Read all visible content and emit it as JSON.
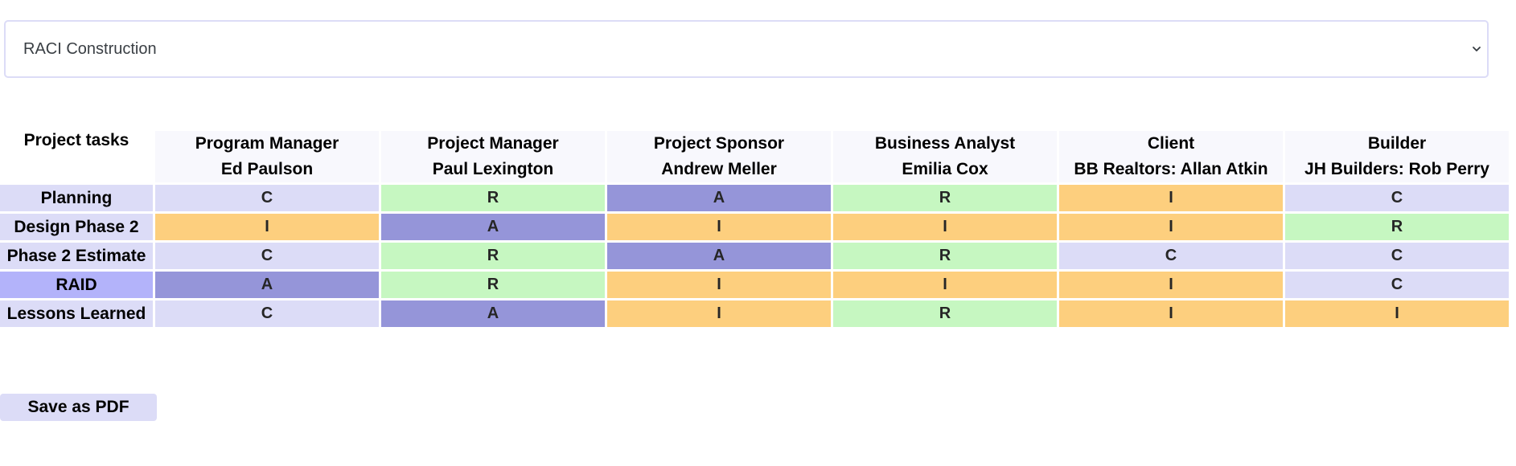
{
  "selector": {
    "value": "RACI Construction"
  },
  "table": {
    "task_header": "Project tasks",
    "roles": [
      {
        "title": "Program Manager",
        "person": "Ed Paulson"
      },
      {
        "title": "Project Manager",
        "person": "Paul Lexington"
      },
      {
        "title": "Project Sponsor",
        "person": "Andrew Meller"
      },
      {
        "title": "Business Analyst",
        "person": "Emilia Cox"
      },
      {
        "title": "Client",
        "person": "BB Realtors: Allan Atkin"
      },
      {
        "title": "Builder",
        "person": "JH Builders: Rob Perry"
      }
    ],
    "rows": [
      {
        "task": "Planning",
        "values": [
          "C",
          "R",
          "A",
          "R",
          "I",
          "C"
        ]
      },
      {
        "task": "Design Phase 2",
        "values": [
          "I",
          "A",
          "I",
          "I",
          "I",
          "R"
        ]
      },
      {
        "task": "Phase 2 Estimate",
        "values": [
          "C",
          "R",
          "A",
          "R",
          "C",
          "C"
        ]
      },
      {
        "task": "RAID",
        "values": [
          "A",
          "R",
          "I",
          "I",
          "I",
          "C"
        ]
      },
      {
        "task": "Lessons Learned",
        "values": [
          "C",
          "A",
          "I",
          "R",
          "I",
          "I"
        ]
      }
    ]
  },
  "colors": {
    "R": "#c6f7c1",
    "A": "#9595d9",
    "C": "#dcdcf7",
    "I": "#fdcf7e"
  },
  "save_button": {
    "label": "Save as PDF"
  },
  "icons": {
    "dropdown": "chevron-down-icon"
  }
}
